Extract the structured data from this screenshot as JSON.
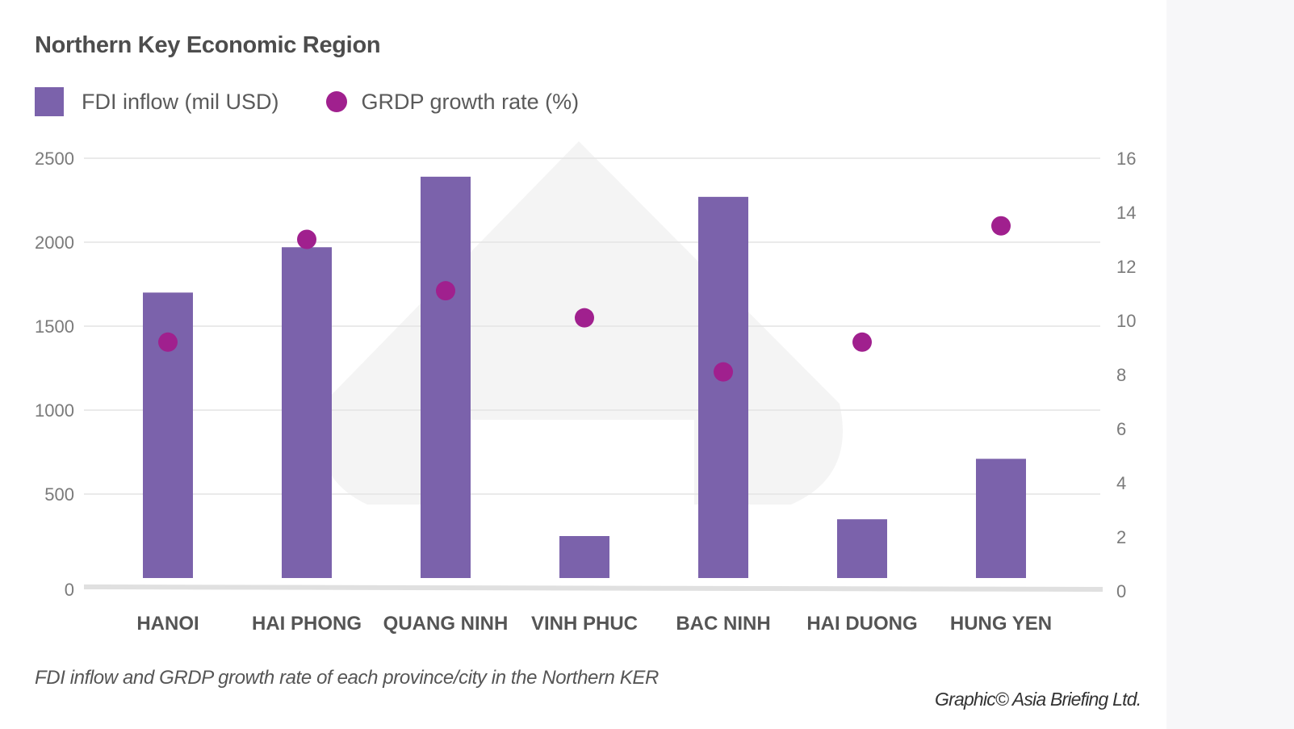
{
  "chart_data": {
    "type": "bar",
    "title": "Northern Key Economic Region",
    "categories": [
      "HANOI",
      "HAI PHONG",
      "QUANG NINH",
      "VINH PHUC",
      "BAC NINH",
      "HAI DUONG",
      "HUNG YEN"
    ],
    "series": [
      {
        "name": "FDI inflow (mil USD)",
        "type": "bar",
        "axis": "left",
        "color": "#7b62ab",
        "values": [
          1700,
          1970,
          2390,
          250,
          2270,
          350,
          710
        ]
      },
      {
        "name": "GRDP growth rate (%)",
        "type": "scatter",
        "axis": "right",
        "color": "#a0208e",
        "values": [
          9.2,
          13.0,
          11.1,
          10.1,
          8.1,
          9.2,
          13.5
        ]
      }
    ],
    "y_left": {
      "ylim": [
        0,
        2500
      ],
      "ticks": [
        "0",
        "500",
        "1000",
        "1500",
        "2000",
        "2500"
      ]
    },
    "y_right": {
      "ylim": [
        0,
        16
      ],
      "ticks": [
        "0",
        "2",
        "4",
        "6",
        "8",
        "10",
        "12",
        "14",
        "16"
      ]
    },
    "grid": true,
    "legend_position": "top-left",
    "caption": "FDI inflow and GRDP growth rate of each province/city in the Northern KER",
    "credit": "Graphic© Asia Briefing Ltd."
  }
}
